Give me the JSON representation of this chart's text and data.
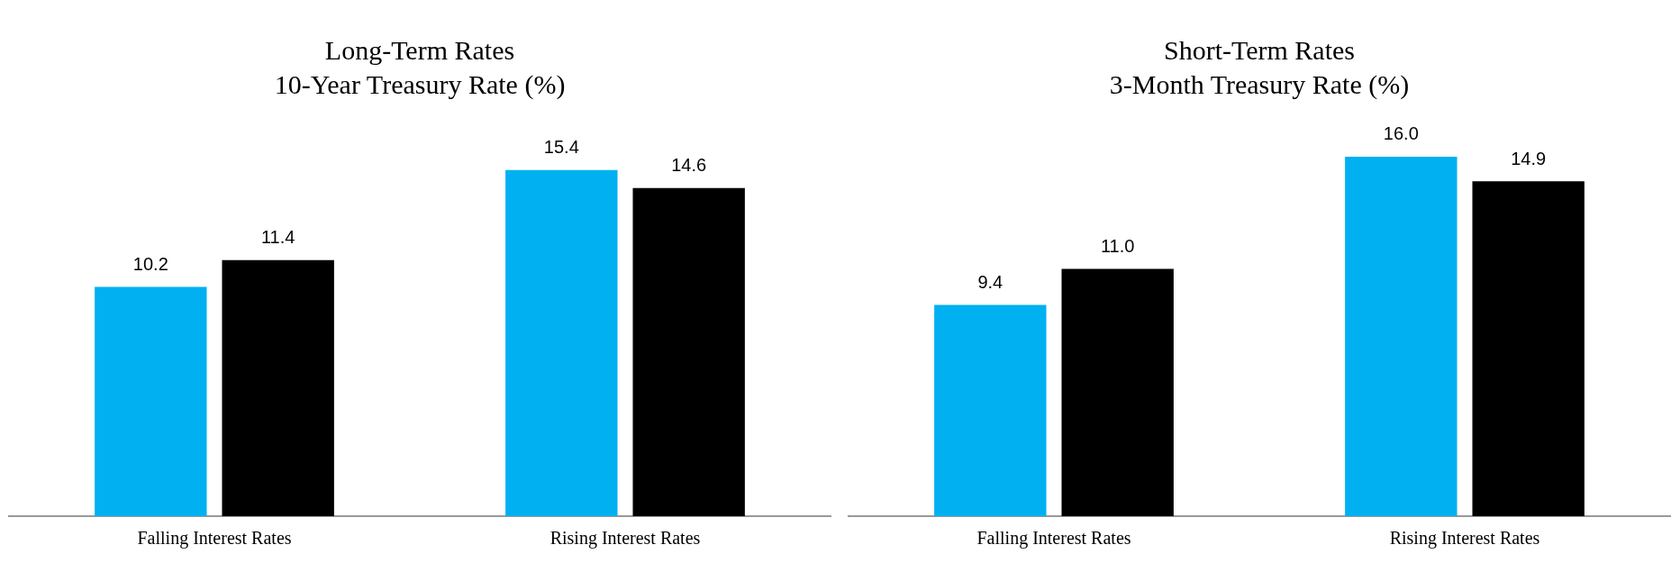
{
  "chart_data": [
    {
      "type": "bar",
      "title": "Long-Term Rates",
      "subtitle": "10-Year Treasury Rate (%)",
      "categories": [
        "Falling Interest Rates",
        "Rising Interest Rates"
      ],
      "series": [
        {
          "color": "#00b0f0",
          "values": [
            10.2,
            15.4
          ],
          "value_labels": [
            "10.2",
            "15.4"
          ]
        },
        {
          "color": "#000000",
          "values": [
            11.4,
            14.6
          ],
          "value_labels": [
            "11.4",
            "14.6"
          ]
        }
      ],
      "grid": false,
      "tick_labels": "x",
      "legend": false
    },
    {
      "type": "bar",
      "title": "Short-Term Rates",
      "subtitle": "3-Month Treasury Rate (%)",
      "categories": [
        "Falling Interest Rates",
        "Rising Interest Rates"
      ],
      "series": [
        {
          "color": "#00b0f0",
          "values": [
            9.4,
            16.0
          ],
          "value_labels": [
            "9.4",
            "16.0"
          ]
        },
        {
          "color": "#000000",
          "values": [
            11.0,
            14.9
          ],
          "value_labels": [
            "11.0",
            "14.9"
          ]
        }
      ],
      "grid": false,
      "tick_labels": "x",
      "legend": false
    }
  ]
}
